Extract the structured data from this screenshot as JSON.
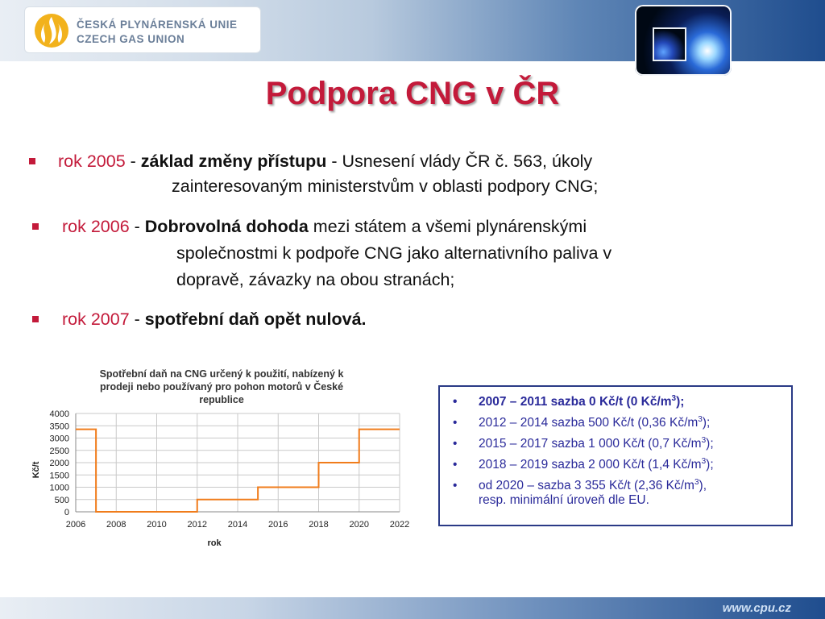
{
  "header": {
    "logo_cz": "ČESKÁ PLYNÁRENSKÁ UNIE",
    "logo_en": "CZECH GAS UNION"
  },
  "title": "Podpora CNG v ČR",
  "bullets": [
    {
      "year": "rok 2005",
      "dash": " - ",
      "bold": "základ změny přístupu",
      "rest": " - Usnesení vlády ČR č. 563, úkoly",
      "cont": [
        "zainteresovaným ministerstvům v oblasti podpory CNG;"
      ]
    },
    {
      "year": "rok 2006",
      "dash": " - ",
      "bold": "Dobrovolná dohoda",
      "rest": " mezi státem a všemi plynárenskými",
      "cont": [
        "společnostmi k podpoře CNG jako alternativního paliva v",
        "dopravě, závazky na obou stranách;"
      ]
    },
    {
      "year": "rok 2007",
      "dash": " - ",
      "bold": "spotřební daň opět nulová.",
      "rest": "",
      "cont": []
    }
  ],
  "chart_data": {
    "type": "line",
    "title": [
      "Spotřební daň na CNG určený k použití, nabízený k",
      "prodeji nebo používaný pro pohon motorů v České",
      "republice"
    ],
    "xlabel": "rok",
    "ylabel": "Kč/t",
    "xlim": [
      2006,
      2022
    ],
    "ylim": [
      0,
      4000
    ],
    "xticks": [
      2006,
      2008,
      2010,
      2012,
      2014,
      2016,
      2018,
      2020,
      2022
    ],
    "yticks": [
      0,
      500,
      1000,
      1500,
      2000,
      2500,
      3000,
      3500,
      4000
    ],
    "grid": true,
    "step": true,
    "color": "#f07c1b",
    "series": [
      {
        "x": [
          2006,
          2007,
          2007,
          2012,
          2012,
          2015,
          2015,
          2018,
          2018,
          2020,
          2020,
          2022
        ],
        "y": [
          3355,
          3355,
          0,
          0,
          500,
          500,
          1000,
          1000,
          2000,
          2000,
          3355,
          3355
        ]
      }
    ]
  },
  "rates": [
    {
      "dot": "•",
      "text": "2007 – 2011 sazba 0 Kč/t (0 Kč/m",
      "sup": "3",
      "after": ");",
      "cont": ""
    },
    {
      "dot": "•",
      "text": "2012 – 2014 sazba 500 Kč/t (0,36 Kč/m",
      "sup": "3",
      "after": ");",
      "cont": ""
    },
    {
      "dot": "•",
      "text": "2015 – 2017 sazba 1 000 Kč/t (0,7 Kč/m",
      "sup": "3",
      "after": ");",
      "cont": ""
    },
    {
      "dot": "•",
      "text": "2018 – 2019 sazba 2 000 Kč/t (1,4 Kč/m",
      "sup": "3",
      "after": ");",
      "cont": ""
    },
    {
      "dot": "•",
      "text": "od 2020 – sazba 3 355 Kč/t (2,36 Kč/m",
      "sup": "3",
      "after": "),",
      "cont": "resp. minimální úroveň dle EU."
    }
  ],
  "footer": {
    "url": "www.cpu.cz"
  }
}
